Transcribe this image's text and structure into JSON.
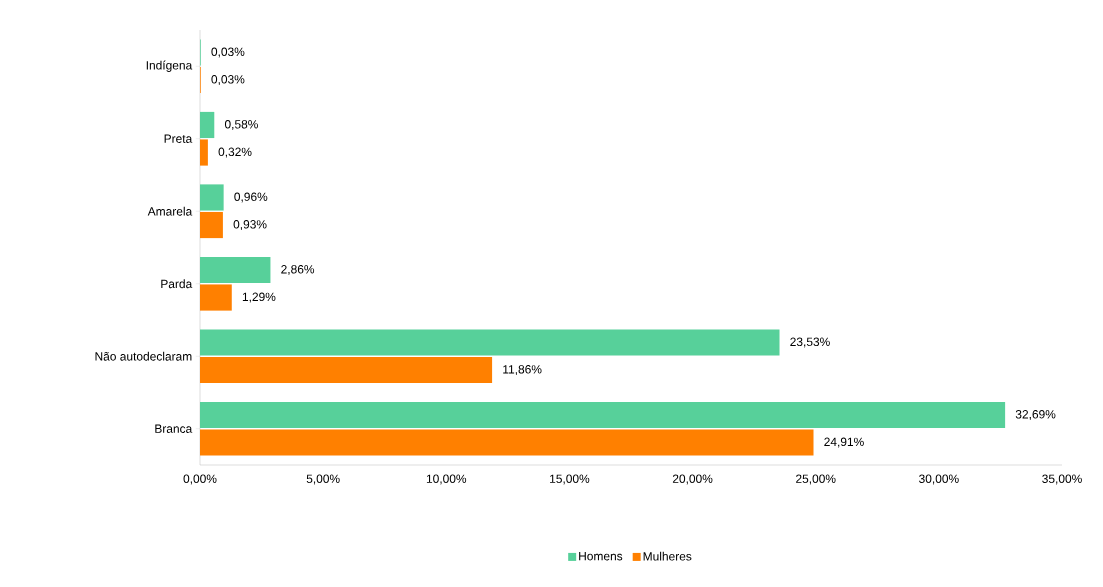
{
  "chart_data": {
    "type": "bar",
    "orientation": "horizontal",
    "categories": [
      "Indígena",
      "Preta",
      "Amarela",
      "Parda",
      "Não autodeclaram",
      "Branca"
    ],
    "series": [
      {
        "name": "Homens",
        "color": "#57d09a",
        "values": [
          0.03,
          0.58,
          0.96,
          2.86,
          23.53,
          32.69
        ],
        "value_labels": [
          "0,03%",
          "0,58%",
          "0,96%",
          "2,86%",
          "23,53%",
          "32,69%"
        ]
      },
      {
        "name": "Mulheres",
        "color": "#ff8000",
        "values": [
          0.03,
          0.32,
          0.93,
          1.29,
          11.86,
          24.91
        ],
        "value_labels": [
          "0,03%",
          "0,32%",
          "0,93%",
          "1,29%",
          "11,86%",
          "24,91%"
        ]
      }
    ],
    "xlim": [
      0,
      35
    ],
    "xticks": [
      {
        "value": 0,
        "label": "0,00%"
      },
      {
        "value": 5,
        "label": "5,00%"
      },
      {
        "value": 10,
        "label": "10,00%"
      },
      {
        "value": 15,
        "label": "15,00%"
      },
      {
        "value": 20,
        "label": "20,00%"
      },
      {
        "value": 25,
        "label": "25,00%"
      },
      {
        "value": 30,
        "label": "30,00%"
      },
      {
        "value": 35,
        "label": "35,00%"
      }
    ],
    "legend": "bottom"
  }
}
